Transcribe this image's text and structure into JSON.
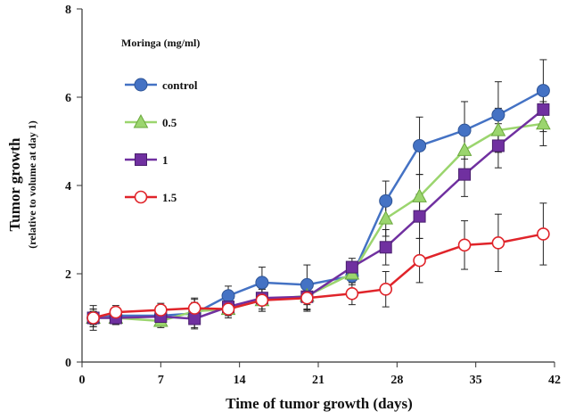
{
  "chart_data": {
    "type": "line",
    "xlabel": "Time of tumor growth (days)",
    "ylabel": "Tumor growth",
    "ylabel_sub": "(relative to volume at day 1)",
    "xlim": [
      0,
      42
    ],
    "ylim": [
      0,
      8
    ],
    "xticks": [
      0,
      7,
      14,
      21,
      28,
      35,
      42
    ],
    "yticks": [
      0,
      2,
      4,
      6,
      8
    ],
    "grid": false,
    "legend": {
      "title": "Moringa (mg/ml)",
      "placement": "top-left"
    },
    "series": [
      {
        "name": "control",
        "color": "#4472c4",
        "marker": "circle-filled",
        "x": [
          1,
          3,
          7,
          10,
          13,
          16,
          20,
          24,
          27,
          30,
          34,
          37,
          41
        ],
        "y": [
          1.0,
          1.05,
          1.05,
          1.1,
          1.5,
          1.8,
          1.75,
          1.95,
          3.65,
          4.9,
          5.25,
          5.6,
          6.15
        ],
        "err": [
          0.28,
          0.15,
          0.15,
          0.35,
          0.22,
          0.35,
          0.45,
          0.2,
          0.45,
          0.65,
          0.65,
          0.75,
          0.7
        ]
      },
      {
        "name": "0.5",
        "color": "#9bd56e",
        "marker": "triangle",
        "x": [
          1,
          3,
          7,
          10,
          13,
          16,
          20,
          24,
          27,
          30,
          34,
          37,
          41
        ],
        "y": [
          1.0,
          1.0,
          0.93,
          1.15,
          1.2,
          1.4,
          1.5,
          2.0,
          3.25,
          3.75,
          4.8,
          5.25,
          5.4
        ],
        "err": [
          0.2,
          0.15,
          0.15,
          0.2,
          0.2,
          0.25,
          0.3,
          0.2,
          0.4,
          0.5,
          0.5,
          0.5,
          0.5
        ]
      },
      {
        "name": "1",
        "color": "#7030a0",
        "marker": "square",
        "x": [
          1,
          3,
          7,
          10,
          13,
          16,
          20,
          24,
          27,
          30,
          34,
          37,
          41
        ],
        "y": [
          1.0,
          1.0,
          1.03,
          0.98,
          1.25,
          1.45,
          1.48,
          2.15,
          2.6,
          3.3,
          4.25,
          4.9,
          5.72
        ],
        "err": [
          0.2,
          0.15,
          0.15,
          0.2,
          0.2,
          0.25,
          0.3,
          0.2,
          0.4,
          0.5,
          0.5,
          0.5,
          0.5
        ]
      },
      {
        "name": "1.5",
        "color": "#e0242a",
        "marker": "circle-open",
        "x": [
          1,
          3,
          7,
          10,
          13,
          16,
          20,
          24,
          27,
          30,
          34,
          37,
          41
        ],
        "y": [
          1.0,
          1.13,
          1.18,
          1.22,
          1.2,
          1.4,
          1.45,
          1.55,
          1.65,
          2.3,
          2.65,
          2.7,
          2.9
        ],
        "err": [
          0.15,
          0.15,
          0.15,
          0.2,
          0.15,
          0.25,
          0.3,
          0.25,
          0.4,
          0.5,
          0.55,
          0.65,
          0.7
        ]
      }
    ]
  }
}
